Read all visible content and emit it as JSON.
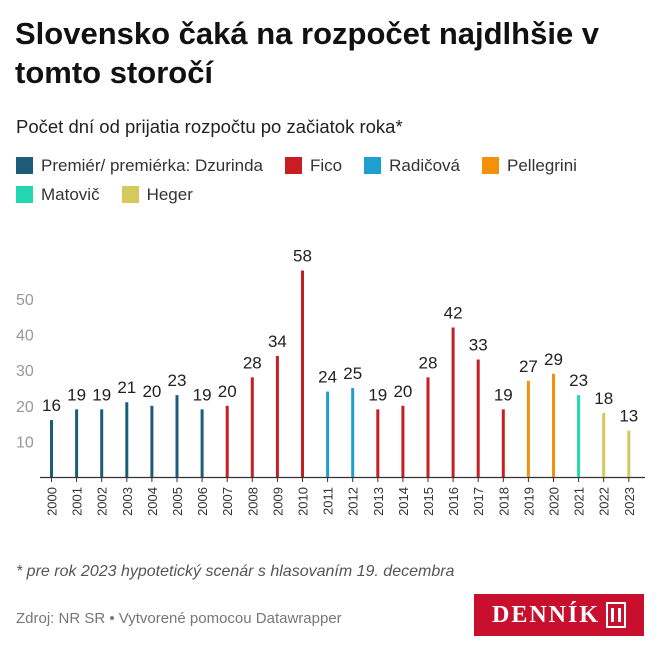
{
  "title": "Slovensko čaká na rozpočet najdlhšie v tomto storočí",
  "subtitle": "Počet dní od prijatia rozpočtu po začiatok roka*",
  "legend": [
    {
      "label": "Premiér/ premiérka: Dzurinda",
      "color": "#1f5c7a"
    },
    {
      "label": "Fico",
      "color": "#c91d24"
    },
    {
      "label": "Radičová",
      "color": "#1d9fd0"
    },
    {
      "label": "Pellegrini",
      "color": "#f5900b"
    },
    {
      "label": "Matovič",
      "color": "#21d8b2"
    },
    {
      "label": "Heger",
      "color": "#d4c95a"
    }
  ],
  "chart_data": {
    "type": "bar",
    "title": "Slovensko čaká na rozpočet najdlhšie v tomto storočí",
    "subtitle": "Počet dní od prijatia rozpočtu po začiatok roka*",
    "categories": [
      "2000",
      "2001",
      "2002",
      "2003",
      "2004",
      "2005",
      "2006",
      "2007",
      "2008",
      "2009",
      "2010",
      "2011",
      "2012",
      "2013",
      "2014",
      "2015",
      "2016",
      "2017",
      "2018",
      "2019",
      "2020",
      "2021",
      "2022",
      "2023"
    ],
    "values": [
      16,
      19,
      19,
      21,
      20,
      23,
      19,
      20,
      28,
      34,
      58,
      24,
      25,
      19,
      20,
      28,
      42,
      33,
      19,
      27,
      29,
      23,
      18,
      13
    ],
    "groups": [
      "Premiér/ premiérka: Dzurinda",
      "Premiér/ premiérka: Dzurinda",
      "Premiér/ premiérka: Dzurinda",
      "Premiér/ premiérka: Dzurinda",
      "Premiér/ premiérka: Dzurinda",
      "Premiér/ premiérka: Dzurinda",
      "Premiér/ premiérka: Dzurinda",
      "Fico",
      "Fico",
      "Fico",
      "Fico",
      "Radičová",
      "Radičová",
      "Fico",
      "Fico",
      "Fico",
      "Fico",
      "Fico",
      "Fico",
      "Pellegrini",
      "Pellegrini",
      "Matovič",
      "Heger",
      "Heger"
    ],
    "yticks": [
      10,
      20,
      30,
      40,
      50
    ],
    "ylim": [
      0,
      60
    ],
    "grid": false
  },
  "footnote": "* pre rok 2023 hypotetický scenár s hlasovaním 19. decembra",
  "source": "Zdroj: NR SR • Vytvorené pomocou Datawrapper",
  "logo": "DENNÍK"
}
